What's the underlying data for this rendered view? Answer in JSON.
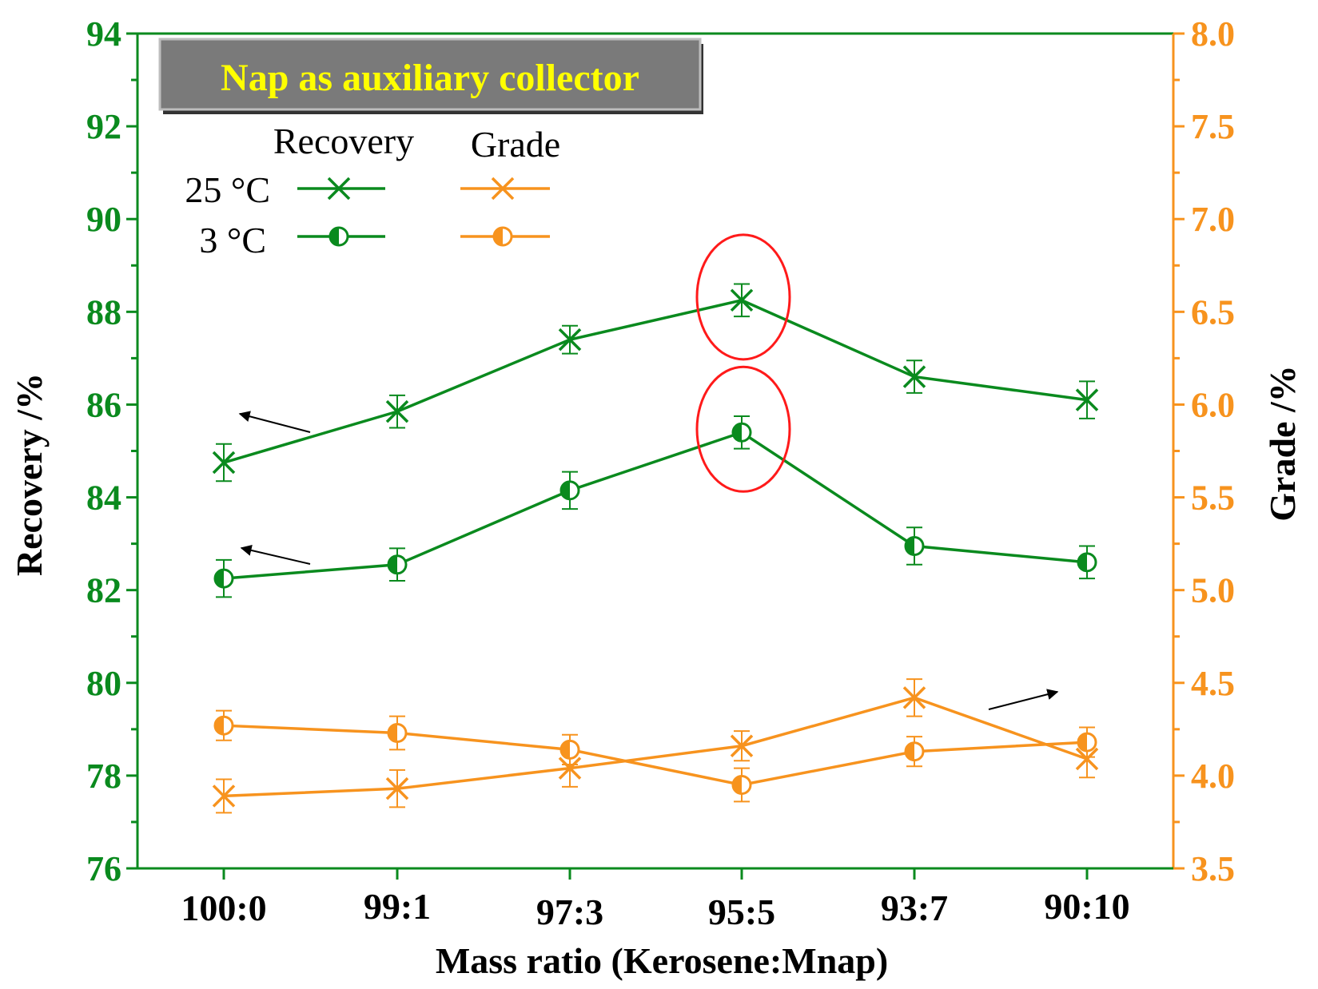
{
  "chart_data": {
    "type": "line",
    "title": "Nap as auxiliary collector",
    "xlabel": "Mass ratio (Kerosene:Mnap)",
    "ylabel_left": "Recovery /%",
    "ylabel_right": "Grade /%",
    "categories": [
      "100:0",
      "99:1",
      "97:3",
      "95:5",
      "93:7",
      "90:10"
    ],
    "y_left": {
      "range": [
        76,
        94
      ],
      "ticks": [
        "76",
        "78",
        "80",
        "82",
        "84",
        "86",
        "88",
        "90",
        "92",
        "94"
      ],
      "color": "#0a8a1e"
    },
    "y_right": {
      "range": [
        3.5,
        8.0
      ],
      "ticks": [
        "3.5",
        "4.0",
        "4.5",
        "5.0",
        "5.5",
        "6.0",
        "6.5",
        "7.0",
        "7.5",
        "8.0"
      ],
      "color": "#f7931e"
    },
    "legend": {
      "placement": "top-left",
      "col_headers": [
        "Recovery",
        "Grade"
      ],
      "row_labels": [
        "25 °C",
        "3 °C"
      ]
    },
    "series": [
      {
        "name": "Recovery 25 °C",
        "axis": "left",
        "marker": "x",
        "color": "#0a8a1e",
        "values": [
          84.75,
          85.85,
          87.4,
          88.25,
          86.6,
          86.1
        ],
        "errors": [
          0.4,
          0.35,
          0.3,
          0.35,
          0.35,
          0.4
        ]
      },
      {
        "name": "Recovery 3 °C",
        "axis": "left",
        "marker": "half-circle",
        "color": "#0a8a1e",
        "values": [
          82.25,
          82.55,
          84.15,
          85.4,
          82.95,
          82.6
        ],
        "errors": [
          0.4,
          0.35,
          0.4,
          0.35,
          0.4,
          0.35
        ]
      },
      {
        "name": "Grade 25 °C",
        "axis": "right",
        "marker": "x",
        "color": "#f7931e",
        "values": [
          3.89,
          3.93,
          4.04,
          4.16,
          4.42,
          4.09
        ],
        "errors": [
          0.09,
          0.1,
          0.1,
          0.08,
          0.1,
          0.1
        ]
      },
      {
        "name": "Grade 3 °C",
        "axis": "right",
        "marker": "half-circle",
        "color": "#f7931e",
        "values": [
          4.27,
          4.23,
          4.14,
          3.95,
          4.13,
          4.18
        ],
        "errors": [
          0.08,
          0.09,
          0.08,
          0.09,
          0.08,
          0.08
        ]
      }
    ],
    "highlights": [
      {
        "series": "Recovery 25 °C",
        "category": "95:5",
        "shape": "ellipse",
        "color": "#ff1a1a"
      },
      {
        "series": "Recovery 3 °C",
        "category": "95:5",
        "shape": "ellipse",
        "color": "#ff1a1a"
      }
    ],
    "arrows": [
      {
        "series": "Recovery 25 °C",
        "points_to": "left"
      },
      {
        "series": "Recovery 3 °C",
        "points_to": "left"
      },
      {
        "series": "Grade 25 °C",
        "points_to": "right"
      }
    ],
    "grid": false
  }
}
